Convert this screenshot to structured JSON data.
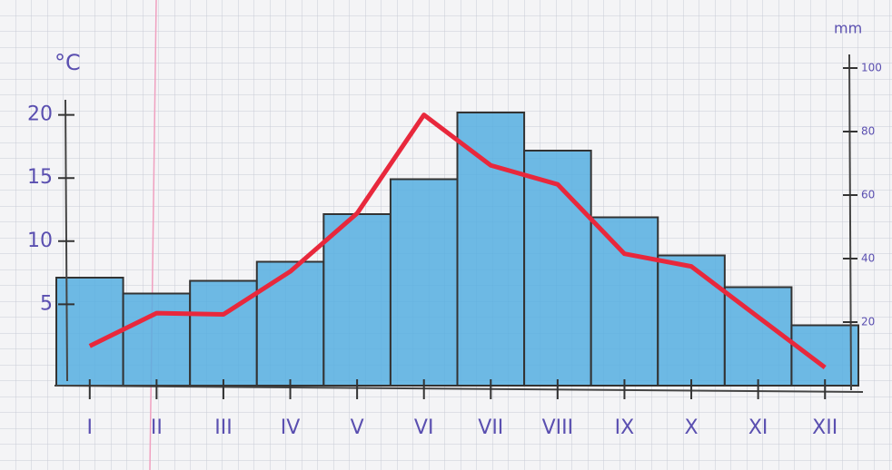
{
  "chart_data": {
    "type": "bar-line",
    "y_label": "°C",
    "y2_label": "mm",
    "categories": [
      "I",
      "II",
      "III",
      "IV",
      "V",
      "VI",
      "VII",
      "VIII",
      "IX",
      "X",
      "XI",
      "XII"
    ],
    "series": [
      {
        "type": "bar",
        "axis": "y2",
        "color": "#55aee0",
        "values": [
          34,
          29,
          33,
          39,
          54,
          65,
          86,
          74,
          53,
          41,
          31,
          19
        ]
      },
      {
        "type": "line",
        "axis": "y",
        "color": "#e8283c",
        "values": [
          1.7,
          4.3,
          4.2,
          7.6,
          12.2,
          20,
          16,
          14.5,
          9,
          8,
          4,
          0
        ]
      }
    ],
    "ylim": [
      0,
      25
    ],
    "yticks": [
      5,
      10,
      15,
      20
    ],
    "y2lim": [
      0,
      100
    ],
    "y2ticks": [
      20,
      40,
      60,
      80,
      100
    ]
  }
}
